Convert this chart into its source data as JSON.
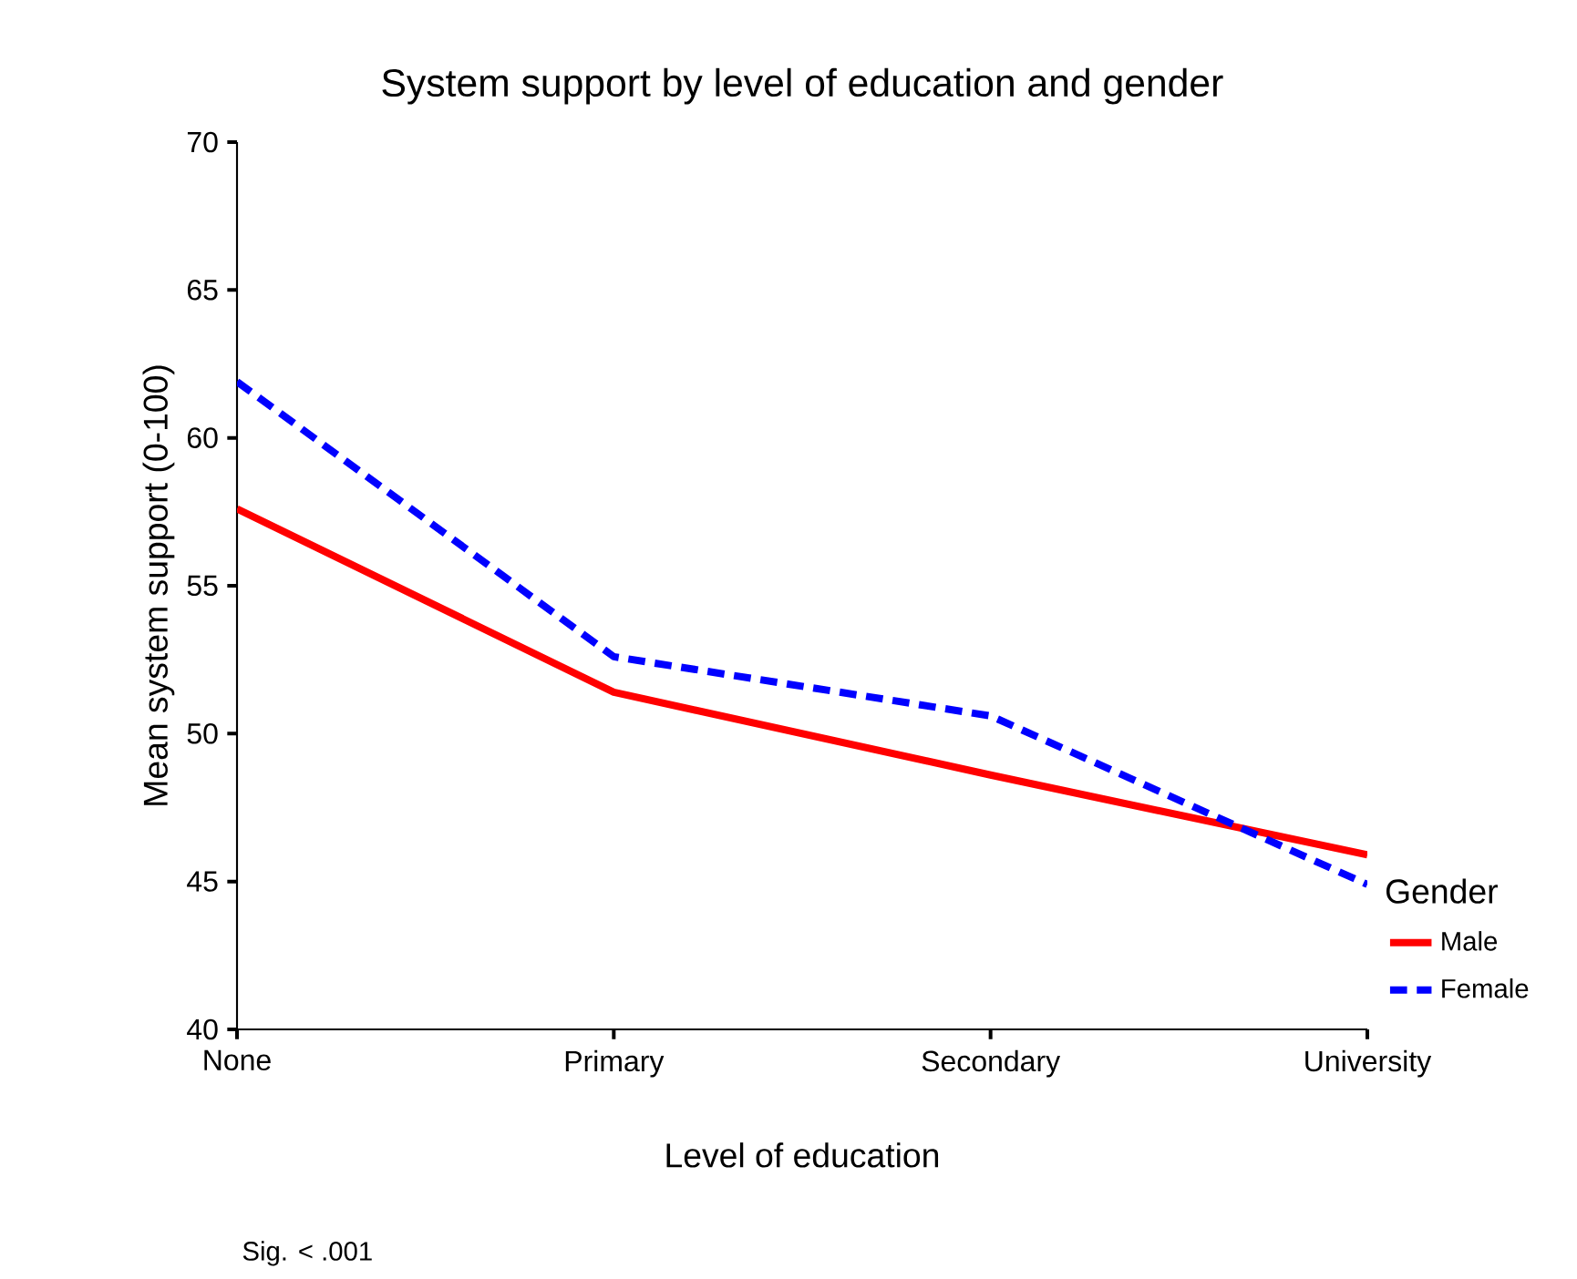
{
  "chart_data": {
    "type": "line",
    "title": "System support by level of education and gender",
    "xlabel": "Level of education",
    "ylabel": "Mean system support (0-100)",
    "legend_title": "Gender",
    "annotations": [
      "Sig. < .001"
    ],
    "categories": [
      "None",
      "Primary",
      "Secondary",
      "University"
    ],
    "series": [
      {
        "name": "Male",
        "color": "#ff0000",
        "line_style": "solid",
        "values": [
          57.6,
          51.4,
          48.6,
          45.9
        ]
      },
      {
        "name": "Female",
        "color": "#0000ff",
        "line_style": "dashed",
        "values": [
          61.9,
          52.6,
          50.6,
          44.9
        ]
      }
    ],
    "ylim": [
      40,
      70
    ],
    "yticks": [
      40,
      45,
      50,
      55,
      60,
      65,
      70
    ],
    "grid": false,
    "legend": "right",
    "marker": "none"
  }
}
